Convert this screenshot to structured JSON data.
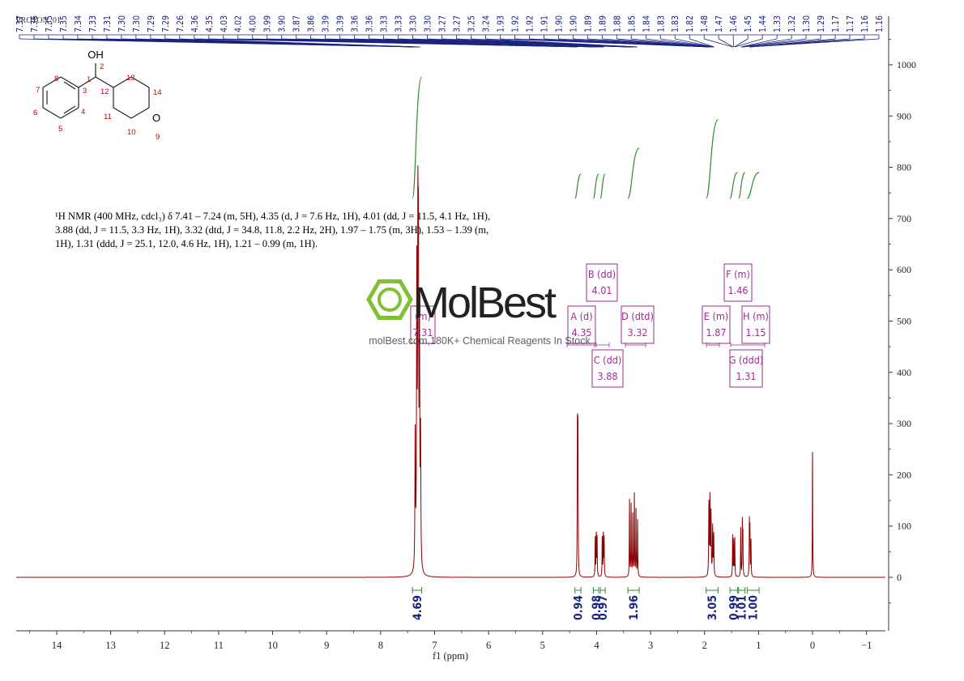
{
  "title": "PROTON_01",
  "nmr_text": "¹H NMR (400 MHz, cdcl₃) δ 7.41 – 7.24 (m, 5H), 4.35 (d, J = 7.6 Hz, 1H), 4.01 (dd, J = 11.5, 4.1 Hz, 1H), 3.88 (dd, J = 11.5, 3.3 Hz, 1H), 3.32 (dtd, J = 34.8, 11.8, 2.2 Hz, 2H), 1.97 – 1.75 (m, 3H), 1.53 – 1.39 (m, 1H), 1.31 (ddd, J = 25.1, 12.0, 4.6 Hz, 1H), 1.21 – 0.99 (m, 1H).",
  "watermark": {
    "brand": "MolBest",
    "tagline": "molBest.com,180K+ Chemical Reagents In Stock"
  },
  "molecule": {
    "oh_label": "OH",
    "atom_numbers": [
      "1",
      "2",
      "3",
      "4",
      "5",
      "6",
      "7",
      "8",
      "9",
      "10",
      "11",
      "12",
      "13",
      "14"
    ],
    "oxygen": "O"
  },
  "colors": {
    "spectrum": "#8b0000",
    "peak_marker": "#1a237e",
    "integral": "#2e8b2e",
    "multiplet_box": "#9b2d8e",
    "axis": "#333333"
  },
  "chart_data": {
    "type": "line",
    "xlabel": "f1 (ppm)",
    "x_ticks": [
      14,
      13,
      12,
      11,
      10,
      9,
      8,
      7,
      6,
      5,
      4,
      3,
      2,
      1,
      0,
      -1
    ],
    "x_tick_labels": [
      "14",
      "13",
      "12",
      "11",
      "10",
      "9",
      "8",
      "7",
      "6",
      "5",
      "4",
      "3",
      "2",
      "1",
      "0",
      "−1"
    ],
    "x_reversed": true,
    "xlim": [
      14.75,
      -1.35
    ],
    "y_ticks": [
      0,
      100,
      200,
      300,
      400,
      500,
      600,
      700,
      800,
      900,
      1000
    ],
    "ylim": [
      -100,
      1070
    ],
    "peak_labels": [
      "7.37",
      "7.36",
      "7.35",
      "7.35",
      "7.34",
      "7.33",
      "7.31",
      "7.30",
      "7.30",
      "7.29",
      "7.29",
      "7.26",
      "4.36",
      "4.35",
      "4.03",
      "4.02",
      "4.00",
      "3.99",
      "3.90",
      "3.87",
      "3.86",
      "3.39",
      "3.39",
      "3.36",
      "3.36",
      "3.33",
      "3.33",
      "3.30",
      "3.30",
      "3.27",
      "3.27",
      "3.25",
      "3.24",
      "1.93",
      "1.92",
      "1.92",
      "1.91",
      "1.90",
      "1.90",
      "1.89",
      "1.89",
      "1.88",
      "1.85",
      "1.84",
      "1.83",
      "1.83",
      "1.82",
      "1.48",
      "1.47",
      "1.46",
      "1.45",
      "1.44",
      "1.33",
      "1.32",
      "1.30",
      "1.29",
      "1.17",
      "1.17",
      "1.16",
      "1.16"
    ],
    "peaks": [
      {
        "ppm": 7.33,
        "height": 560,
        "width": 0.006
      },
      {
        "ppm": 7.31,
        "height": 590,
        "width": 0.006
      },
      {
        "ppm": 7.3,
        "height": 540,
        "width": 0.006
      },
      {
        "ppm": 7.28,
        "height": 440,
        "width": 0.006
      },
      {
        "ppm": 7.36,
        "height": 260,
        "width": 0.006
      },
      {
        "ppm": 7.26,
        "height": 250,
        "width": 0.006
      },
      {
        "ppm": 4.355,
        "height": 290,
        "width": 0.004
      },
      {
        "ppm": 4.345,
        "height": 285,
        "width": 0.004
      },
      {
        "ppm": 4.025,
        "height": 80,
        "width": 0.004
      },
      {
        "ppm": 4.005,
        "height": 85,
        "width": 0.004
      },
      {
        "ppm": 3.99,
        "height": 75,
        "width": 0.004
      },
      {
        "ppm": 3.895,
        "height": 80,
        "width": 0.004
      },
      {
        "ppm": 3.875,
        "height": 85,
        "width": 0.004
      },
      {
        "ppm": 3.86,
        "height": 75,
        "width": 0.004
      },
      {
        "ppm": 3.39,
        "height": 150,
        "width": 0.004
      },
      {
        "ppm": 3.36,
        "height": 140,
        "width": 0.004
      },
      {
        "ppm": 3.33,
        "height": 120,
        "width": 0.004
      },
      {
        "ppm": 3.3,
        "height": 160,
        "width": 0.004
      },
      {
        "ppm": 3.27,
        "height": 130,
        "width": 0.004
      },
      {
        "ppm": 3.24,
        "height": 110,
        "width": 0.004
      },
      {
        "ppm": 1.92,
        "height": 140,
        "width": 0.005
      },
      {
        "ppm": 1.9,
        "height": 150,
        "width": 0.005
      },
      {
        "ppm": 1.88,
        "height": 120,
        "width": 0.005
      },
      {
        "ppm": 1.85,
        "height": 95,
        "width": 0.005
      },
      {
        "ppm": 1.83,
        "height": 80,
        "width": 0.005
      },
      {
        "ppm": 1.48,
        "height": 80,
        "width": 0.004
      },
      {
        "ppm": 1.46,
        "height": 70,
        "width": 0.004
      },
      {
        "ppm": 1.44,
        "height": 75,
        "width": 0.004
      },
      {
        "ppm": 1.33,
        "height": 95,
        "width": 0.004
      },
      {
        "ppm": 1.3,
        "height": 105,
        "width": 0.004
      },
      {
        "ppm": 1.29,
        "height": 80,
        "width": 0.004
      },
      {
        "ppm": 1.17,
        "height": 105,
        "width": 0.004
      },
      {
        "ppm": 1.16,
        "height": 90,
        "width": 0.004
      },
      {
        "ppm": 1.14,
        "height": 70,
        "width": 0.004
      },
      {
        "ppm": 0.0,
        "height": 245,
        "width": 0.004
      }
    ],
    "multiplets": [
      {
        "letter": "(m)",
        "shift": "7.31",
        "ppm": 7.31
      },
      {
        "letter": "A (d)",
        "shift": "4.35",
        "ppm": 4.35
      },
      {
        "letter": "B (dd)",
        "shift": "4.01",
        "ppm": 4.01
      },
      {
        "letter": "C (dd)",
        "shift": "3.88",
        "ppm": 3.88
      },
      {
        "letter": "D (dtd)",
        "shift": "3.32",
        "ppm": 3.32
      },
      {
        "letter": "E (m)",
        "shift": "1.87",
        "ppm": 1.87
      },
      {
        "letter": "F (m)",
        "shift": "1.46",
        "ppm": 1.46
      },
      {
        "letter": "G (ddd)",
        "shift": "1.31",
        "ppm": 1.31
      },
      {
        "letter": "H (m)",
        "shift": "1.15",
        "ppm": 1.15
      }
    ],
    "integrals": [
      {
        "from": 7.41,
        "to": 7.24,
        "value": "4.69"
      },
      {
        "from": 4.4,
        "to": 4.29,
        "value": "0.94"
      },
      {
        "from": 4.06,
        "to": 3.96,
        "value": "0.98"
      },
      {
        "from": 3.93,
        "to": 3.84,
        "value": "0.97"
      },
      {
        "from": 3.42,
        "to": 3.21,
        "value": "1.96"
      },
      {
        "from": 1.97,
        "to": 1.75,
        "value": "3.05"
      },
      {
        "from": 1.53,
        "to": 1.39,
        "value": "0.99"
      },
      {
        "from": 1.37,
        "to": 1.25,
        "value": "1.01"
      },
      {
        "from": 1.21,
        "to": 0.99,
        "value": "1.00"
      }
    ]
  }
}
